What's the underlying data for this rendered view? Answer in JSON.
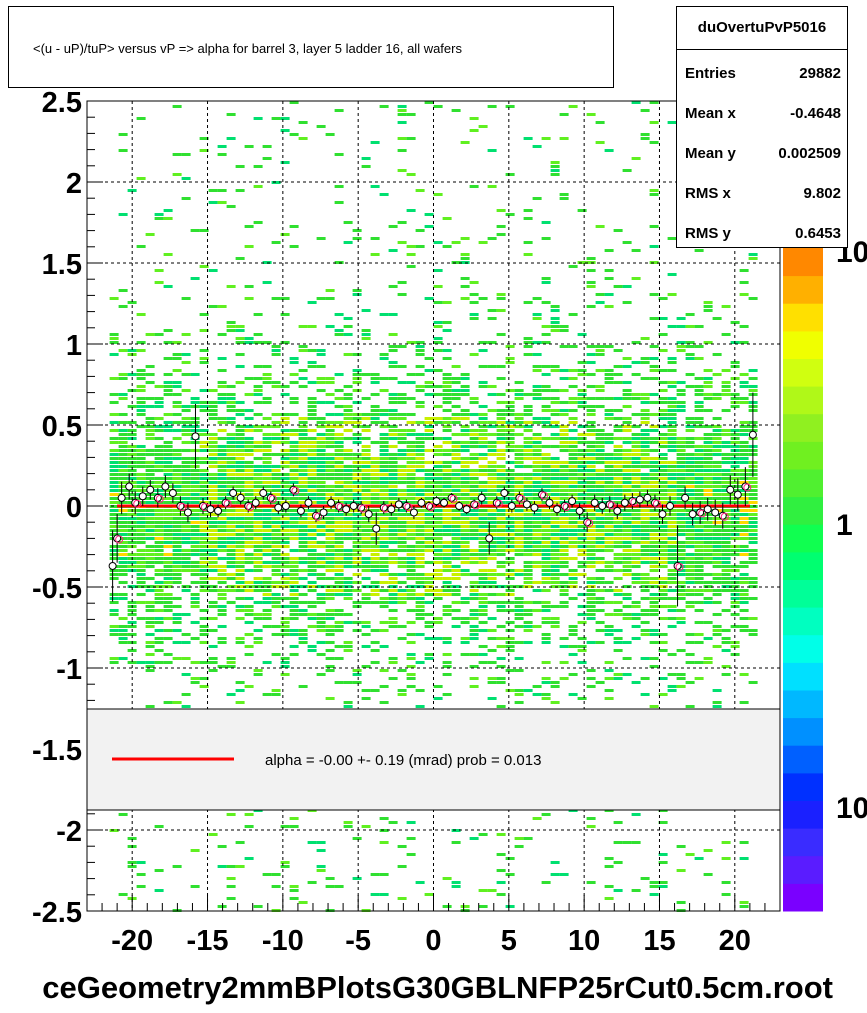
{
  "chart_data": {
    "type": "heatmap",
    "title": "<(u - uP)/tuP> versus   vP => alpha for barrel 3, layer 5 ladder 16, all wafers",
    "xlabel": "",
    "ylabel": "",
    "xlim": [
      -23,
      23
    ],
    "ylim": [
      -2.5,
      2.5
    ],
    "x_ticks": [
      -20,
      -15,
      -10,
      -5,
      0,
      5,
      10,
      15,
      20
    ],
    "y_ticks": [
      -2.5,
      -2,
      -1.5,
      -1,
      -0.5,
      0,
      0.5,
      1,
      1.5,
      2,
      2.5
    ],
    "x_tick_labels": [
      "-20",
      "-15",
      "-10",
      "-5",
      "0",
      "5",
      "10",
      "15",
      "20"
    ],
    "y_tick_labels": [
      "-2.5",
      "-2",
      "-1.5",
      "-1",
      "-0.5",
      "0",
      "0.5",
      "1",
      "1.5",
      "2",
      "2.5"
    ],
    "grid": true,
    "colorbar": {
      "labels": [
        "10",
        "1",
        "10"
      ],
      "colors": [
        "#7a00ff",
        "#5a1cff",
        "#3a2cff",
        "#1a20ff",
        "#0030ff",
        "#0060ff",
        "#0090ff",
        "#00b8ff",
        "#00e0ff",
        "#00ffe8",
        "#00ffc0",
        "#00ff98",
        "#00ff70",
        "#10ff50",
        "#30f040",
        "#50f030",
        "#70f020",
        "#90f020",
        "#b0f818",
        "#d0ff10",
        "#f0ff00",
        "#ffe000",
        "#ffb000",
        "#ff8800"
      ]
    },
    "profile_points": [
      {
        "x": -21.3,
        "y": -0.37,
        "err": 0.22
      },
      {
        "x": -21.0,
        "y": -0.2,
        "err": 0.15
      },
      {
        "x": -20.7,
        "y": 0.05,
        "err": 0.1
      },
      {
        "x": -20.2,
        "y": 0.12,
        "err": 0.08
      },
      {
        "x": -19.8,
        "y": 0.02,
        "err": 0.07
      },
      {
        "x": -19.3,
        "y": 0.06,
        "err": 0.06
      },
      {
        "x": -18.8,
        "y": 0.1,
        "err": 0.06
      },
      {
        "x": -18.3,
        "y": 0.05,
        "err": 0.06
      },
      {
        "x": -17.8,
        "y": 0.12,
        "err": 0.07
      },
      {
        "x": -17.3,
        "y": 0.08,
        "err": 0.06
      },
      {
        "x": -16.8,
        "y": 0.0,
        "err": 0.06
      },
      {
        "x": -16.3,
        "y": -0.04,
        "err": 0.06
      },
      {
        "x": -15.8,
        "y": 0.43,
        "err": 0.2
      },
      {
        "x": -15.3,
        "y": 0.0,
        "err": 0.05
      },
      {
        "x": -14.8,
        "y": -0.02,
        "err": 0.05
      },
      {
        "x": -14.3,
        "y": -0.03,
        "err": 0.04
      },
      {
        "x": -13.8,
        "y": 0.02,
        "err": 0.04
      },
      {
        "x": -13.3,
        "y": 0.08,
        "err": 0.04
      },
      {
        "x": -12.8,
        "y": 0.05,
        "err": 0.04
      },
      {
        "x": -12.3,
        "y": 0.0,
        "err": 0.04
      },
      {
        "x": -11.8,
        "y": 0.02,
        "err": 0.04
      },
      {
        "x": -11.3,
        "y": 0.08,
        "err": 0.04
      },
      {
        "x": -10.8,
        "y": 0.05,
        "err": 0.04
      },
      {
        "x": -10.3,
        "y": -0.01,
        "err": 0.04
      },
      {
        "x": -9.8,
        "y": 0.0,
        "err": 0.04
      },
      {
        "x": -9.3,
        "y": 0.1,
        "err": 0.04
      },
      {
        "x": -8.8,
        "y": -0.03,
        "err": 0.04
      },
      {
        "x": -8.3,
        "y": 0.02,
        "err": 0.04
      },
      {
        "x": -7.8,
        "y": -0.06,
        "err": 0.04
      },
      {
        "x": -7.3,
        "y": -0.04,
        "err": 0.04
      },
      {
        "x": -6.8,
        "y": 0.02,
        "err": 0.04
      },
      {
        "x": -6.3,
        "y": 0.0,
        "err": 0.04
      },
      {
        "x": -5.8,
        "y": -0.02,
        "err": 0.04
      },
      {
        "x": -5.3,
        "y": 0.0,
        "err": 0.04
      },
      {
        "x": -4.8,
        "y": -0.01,
        "err": 0.04
      },
      {
        "x": -4.3,
        "y": -0.05,
        "err": 0.05
      },
      {
        "x": -3.8,
        "y": -0.14,
        "err": 0.1
      },
      {
        "x": -3.3,
        "y": -0.01,
        "err": 0.04
      },
      {
        "x": -2.8,
        "y": -0.02,
        "err": 0.04
      },
      {
        "x": -2.3,
        "y": 0.01,
        "err": 0.04
      },
      {
        "x": -1.8,
        "y": 0.0,
        "err": 0.04
      },
      {
        "x": -1.3,
        "y": -0.04,
        "err": 0.04
      },
      {
        "x": -0.8,
        "y": 0.02,
        "err": 0.03
      },
      {
        "x": -0.3,
        "y": 0.0,
        "err": 0.03
      },
      {
        "x": 0.2,
        "y": 0.03,
        "err": 0.03
      },
      {
        "x": 0.7,
        "y": 0.02,
        "err": 0.03
      },
      {
        "x": 1.2,
        "y": 0.05,
        "err": 0.03
      },
      {
        "x": 1.7,
        "y": 0.0,
        "err": 0.03
      },
      {
        "x": 2.2,
        "y": -0.02,
        "err": 0.03
      },
      {
        "x": 2.7,
        "y": 0.01,
        "err": 0.03
      },
      {
        "x": 3.2,
        "y": 0.05,
        "err": 0.04
      },
      {
        "x": 3.7,
        "y": -0.2,
        "err": 0.1
      },
      {
        "x": 4.2,
        "y": 0.02,
        "err": 0.04
      },
      {
        "x": 4.7,
        "y": 0.08,
        "err": 0.04
      },
      {
        "x": 5.2,
        "y": 0.0,
        "err": 0.04
      },
      {
        "x": 5.7,
        "y": 0.05,
        "err": 0.04
      },
      {
        "x": 6.2,
        "y": 0.01,
        "err": 0.04
      },
      {
        "x": 6.7,
        "y": -0.01,
        "err": 0.04
      },
      {
        "x": 7.2,
        "y": 0.07,
        "err": 0.04
      },
      {
        "x": 7.7,
        "y": 0.02,
        "err": 0.04
      },
      {
        "x": 8.2,
        "y": -0.02,
        "err": 0.04
      },
      {
        "x": 8.7,
        "y": 0.0,
        "err": 0.04
      },
      {
        "x": 9.2,
        "y": 0.03,
        "err": 0.04
      },
      {
        "x": 9.7,
        "y": -0.03,
        "err": 0.05
      },
      {
        "x": 10.2,
        "y": -0.1,
        "err": 0.06
      },
      {
        "x": 10.7,
        "y": 0.02,
        "err": 0.05
      },
      {
        "x": 11.2,
        "y": 0.0,
        "err": 0.05
      },
      {
        "x": 11.7,
        "y": 0.01,
        "err": 0.05
      },
      {
        "x": 12.2,
        "y": -0.03,
        "err": 0.05
      },
      {
        "x": 12.7,
        "y": 0.02,
        "err": 0.05
      },
      {
        "x": 13.2,
        "y": 0.03,
        "err": 0.05
      },
      {
        "x": 13.7,
        "y": 0.04,
        "err": 0.05
      },
      {
        "x": 14.2,
        "y": 0.05,
        "err": 0.05
      },
      {
        "x": 14.7,
        "y": 0.02,
        "err": 0.05
      },
      {
        "x": 15.2,
        "y": -0.05,
        "err": 0.06
      },
      {
        "x": 15.7,
        "y": 0.0,
        "err": 0.06
      },
      {
        "x": 16.2,
        "y": -0.37,
        "err": 0.25
      },
      {
        "x": 16.7,
        "y": 0.05,
        "err": 0.07
      },
      {
        "x": 17.2,
        "y": -0.05,
        "err": 0.07
      },
      {
        "x": 17.7,
        "y": -0.04,
        "err": 0.07
      },
      {
        "x": 18.2,
        "y": -0.02,
        "err": 0.07
      },
      {
        "x": 18.7,
        "y": -0.04,
        "err": 0.08
      },
      {
        "x": 19.2,
        "y": -0.06,
        "err": 0.08
      },
      {
        "x": 19.7,
        "y": 0.1,
        "err": 0.09
      },
      {
        "x": 20.2,
        "y": 0.07,
        "err": 0.1
      },
      {
        "x": 20.7,
        "y": 0.12,
        "err": 0.12
      },
      {
        "x": 21.2,
        "y": 0.44,
        "err": 0.26
      }
    ],
    "fit_line": {
      "x": [
        -21,
        21
      ],
      "y": [
        0,
        0
      ],
      "color": "#ff0000"
    },
    "legend": {
      "placement": "bottom",
      "text": "alpha =   -0.00 +-  0.19 (mrad) prob = 0.013"
    }
  },
  "stats": {
    "name": "duOvertuPvP5016",
    "rows": [
      {
        "label": "Entries",
        "value": "29882"
      },
      {
        "label": "Mean x",
        "value": "-0.4648"
      },
      {
        "label": "Mean y",
        "value": "0.002509"
      },
      {
        "label": "RMS x",
        "value": "9.802"
      },
      {
        "label": "RMS y",
        "value": "0.6453"
      }
    ]
  },
  "footer": "ceGeometry2mmBPlotsG30GBLNFP25rCut0.5cm.root"
}
